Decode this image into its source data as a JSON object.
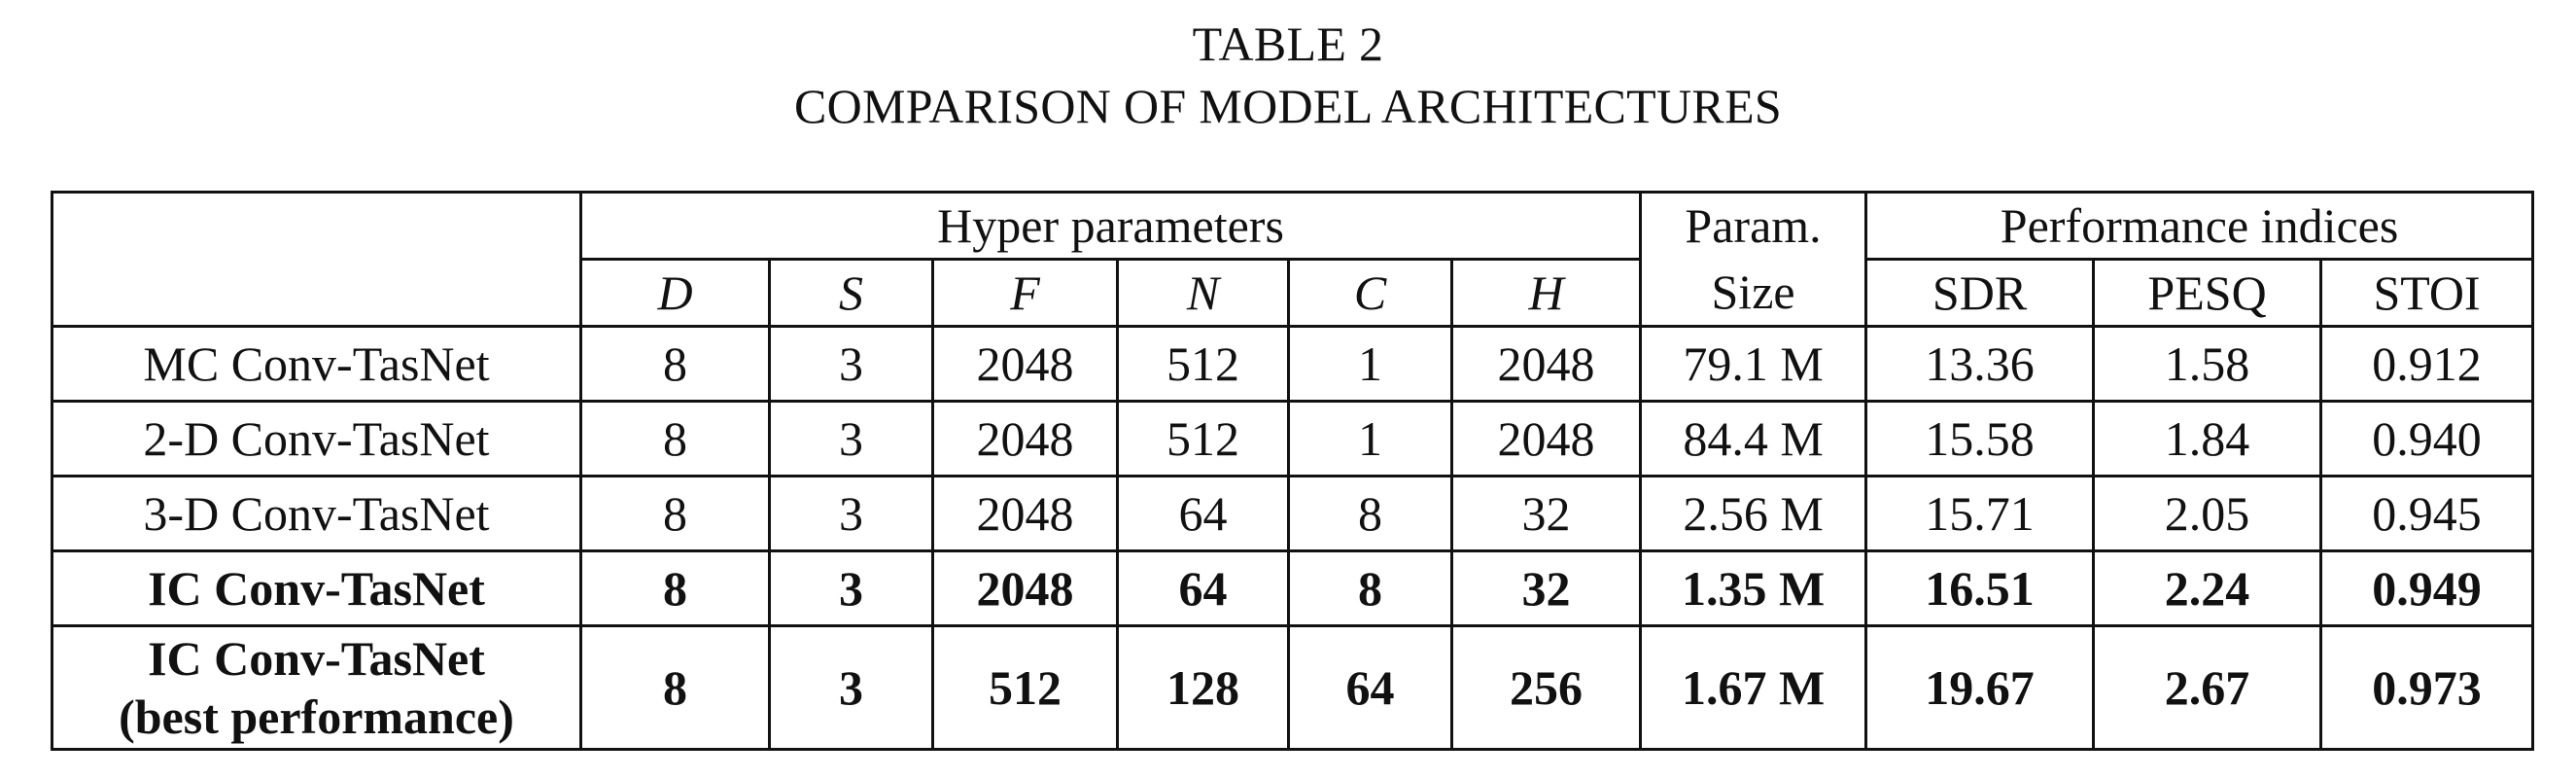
{
  "caption": {
    "number": "TABLE 2",
    "title": "COMPARISON OF MODEL ARCHITECTURES"
  },
  "header": {
    "group_hyper": "Hyper parameters",
    "group_param_line1": "Param.",
    "group_param_line2": "Size",
    "group_perf": "Performance indices",
    "cols": {
      "D": "D",
      "S": "S",
      "F": "F",
      "N": "N",
      "C": "C",
      "H": "H",
      "SDR": "SDR",
      "PESQ": "PESQ",
      "STOI": "STOI"
    }
  },
  "rows": [
    {
      "model": "MC Conv-TasNet",
      "D": "8",
      "S": "3",
      "F": "2048",
      "N": "512",
      "C": "1",
      "H": "2048",
      "size": "79.1 M",
      "SDR": "13.36",
      "PESQ": "1.58",
      "STOI": "0.912"
    },
    {
      "model": "2-D Conv-TasNet",
      "D": "8",
      "S": "3",
      "F": "2048",
      "N": "512",
      "C": "1",
      "H": "2048",
      "size": "84.4 M",
      "SDR": "15.58",
      "PESQ": "1.84",
      "STOI": "0.940"
    },
    {
      "model": "3-D Conv-TasNet",
      "D": "8",
      "S": "3",
      "F": "2048",
      "N": "64",
      "C": "8",
      "H": "32",
      "size": "2.56 M",
      "SDR": "15.71",
      "PESQ": "2.05",
      "STOI": "0.945"
    },
    {
      "model": "IC Conv-TasNet",
      "D": "8",
      "S": "3",
      "F": "2048",
      "N": "64",
      "C": "8",
      "H": "32",
      "size": "1.35 M",
      "SDR": "16.51",
      "PESQ": "2.24",
      "STOI": "0.949"
    },
    {
      "model_line1": "IC Conv-TasNet",
      "model_line2": "(best performance)",
      "D": "8",
      "S": "3",
      "F": "512",
      "N": "128",
      "C": "64",
      "H": "256",
      "size": "1.67 M",
      "SDR": "19.67",
      "PESQ": "2.67",
      "STOI": "0.973"
    }
  ]
}
